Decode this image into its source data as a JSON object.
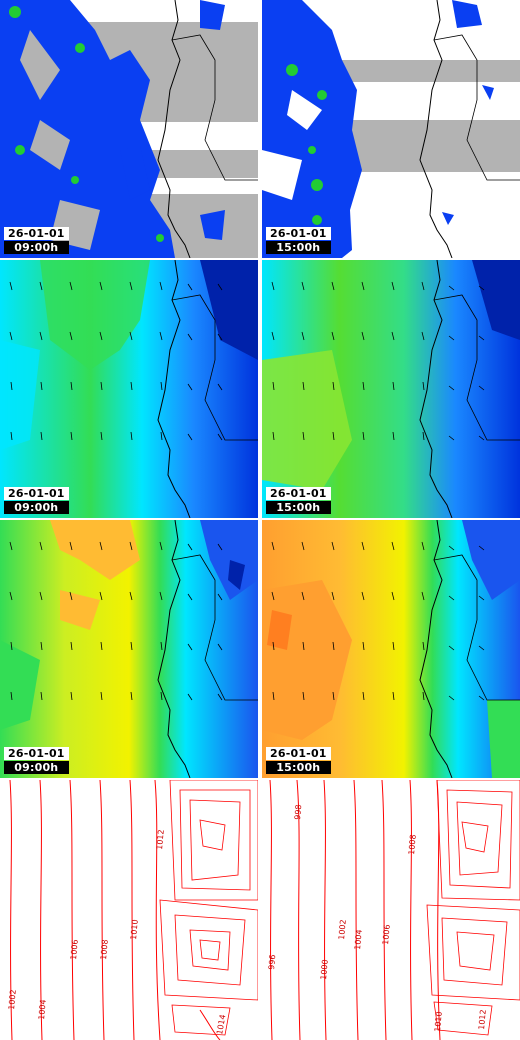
{
  "colors": {
    "precip_blue": "#0a3ff2",
    "precip_green": "#22cc33",
    "mask_gray": "#b3b3b3",
    "wind_low": "#00e6ff",
    "wind_mid": "#33dd55",
    "wind_high": "#0033dd",
    "temp_warm": "#ff9f30",
    "temp_mid": "#f2f200",
    "isobar_red": "#ff0000"
  },
  "rows": [
    {
      "kind": "precipitation",
      "panels": [
        {
          "date": "26-01-01",
          "time": "09:00h"
        },
        {
          "date": "26-01-01",
          "time": "15:00h"
        }
      ]
    },
    {
      "kind": "wind",
      "panels": [
        {
          "date": "26-01-01",
          "time": "09:00h"
        },
        {
          "date": "26-01-01",
          "time": "15:00h"
        }
      ]
    },
    {
      "kind": "temperature",
      "panels": [
        {
          "date": "26-01-01",
          "time": "09:00h"
        },
        {
          "date": "26-01-01",
          "time": "15:00h"
        }
      ]
    },
    {
      "kind": "pressure",
      "panels": [
        {
          "isobars": [
            "1002",
            "1004",
            "1006",
            "1008",
            "1010",
            "1012",
            "1014"
          ]
        },
        {
          "isobars": [
            "996",
            "998",
            "1000",
            "1002",
            "1004",
            "1006",
            "1008",
            "1010",
            "1012"
          ]
        }
      ]
    }
  ]
}
